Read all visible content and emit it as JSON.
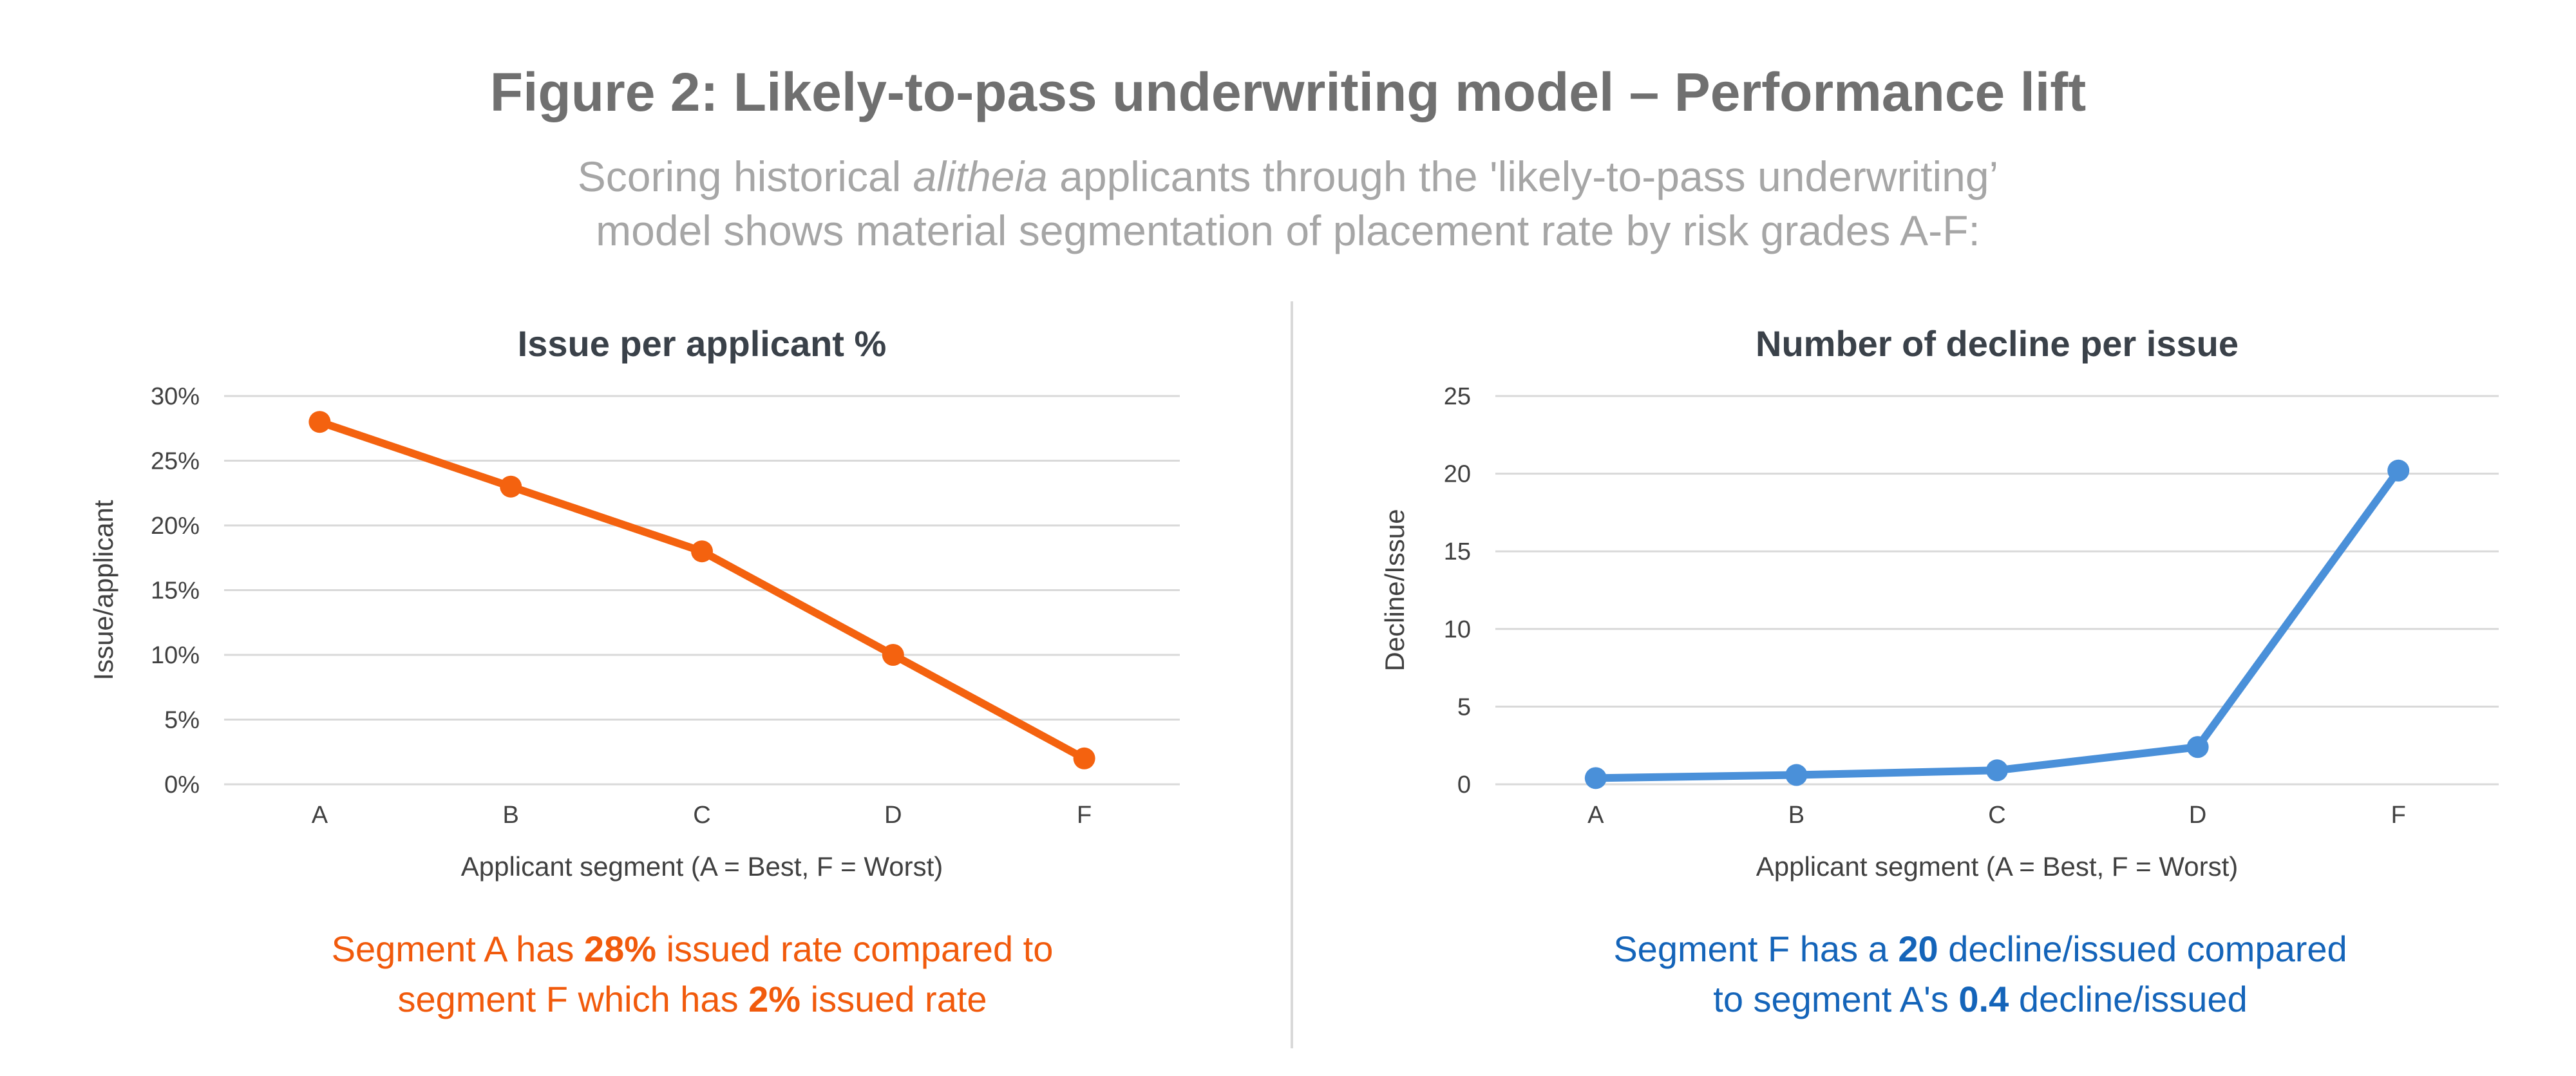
{
  "figure": {
    "title": "Figure 2: Likely-to-pass underwriting model – Performance lift",
    "subtitle_line1_pre": "Scoring historical ",
    "subtitle_line1_em": "alitheia",
    "subtitle_line1_post": " applicants through the 'likely-to-pass underwriting’",
    "subtitle_line2": "model shows material segmentation of placement rate by risk grades A-F:"
  },
  "captions": {
    "left": {
      "line1_pre": "Segment A has ",
      "line1_bold": "28%",
      "line1_post": " issued rate compared to",
      "line2_pre": "segment F which has ",
      "line2_bold": "2%",
      "line2_post": " issued rate"
    },
    "right": {
      "line1_pre": "Segment F has a ",
      "line1_bold": "20",
      "line1_post": " decline/issued compared",
      "line2_pre": "to segment A's ",
      "line2_bold": "0.4",
      "line2_post": " decline/issued"
    }
  },
  "colors": {
    "left_series": "#f4620f",
    "right_series": "#4a90d9",
    "grid": "#d9d9d9",
    "tick_text": "#404040",
    "title_text": "#3a4149"
  },
  "chart_data": [
    {
      "type": "line",
      "title": "Issue per applicant %",
      "xlabel": "Applicant segment (A = Best, F = Worst)",
      "ylabel": "Issue/applicant",
      "categories": [
        "A",
        "B",
        "C",
        "D",
        "F"
      ],
      "ylim": [
        0,
        30
      ],
      "yticks": [
        0,
        5,
        10,
        15,
        20,
        25,
        30
      ],
      "ytick_labels": [
        "0%",
        "5%",
        "10%",
        "15%",
        "20%",
        "25%",
        "30%"
      ],
      "grid": true,
      "series": [
        {
          "values": [
            28,
            23,
            18,
            10,
            2
          ]
        }
      ]
    },
    {
      "type": "line",
      "title": "Number of decline per issue",
      "xlabel": "Applicant segment (A = Best, F = Worst)",
      "ylabel": "Decline/Issue",
      "categories": [
        "A",
        "B",
        "C",
        "D",
        "F"
      ],
      "ylim": [
        0,
        25
      ],
      "yticks": [
        0,
        5,
        10,
        15,
        20,
        25
      ],
      "ytick_labels": [
        "0",
        "5",
        "10",
        "15",
        "20",
        "25"
      ],
      "grid": true,
      "series": [
        {
          "values": [
            0.4,
            0.6,
            0.9,
            2.4,
            20.2
          ]
        }
      ]
    }
  ]
}
